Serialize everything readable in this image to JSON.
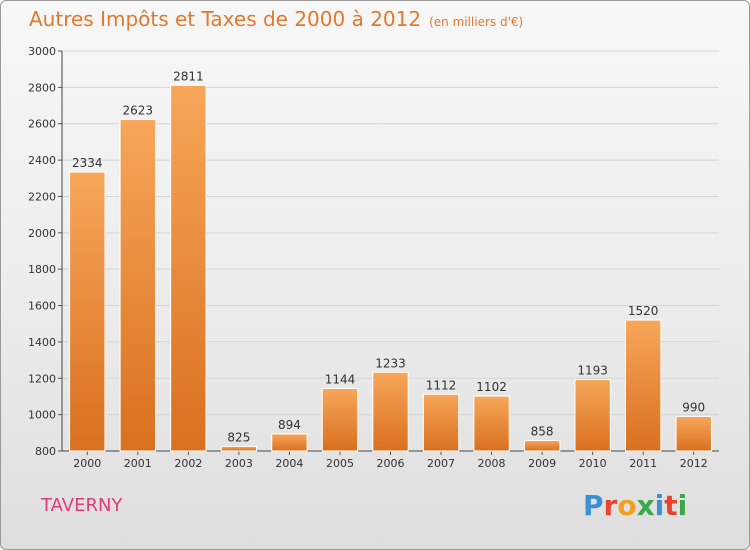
{
  "chart_data": {
    "type": "bar",
    "title": "Autres Impôts et Taxes de 2000 à 2012",
    "subtitle": "(en milliers d'€)",
    "categories": [
      "2000",
      "2001",
      "2002",
      "2003",
      "2004",
      "2005",
      "2006",
      "2007",
      "2008",
      "2009",
      "2010",
      "2011",
      "2012"
    ],
    "values": [
      2334,
      2623,
      2811,
      825,
      894,
      1144,
      1233,
      1112,
      1102,
      858,
      1193,
      1520,
      990
    ],
    "ylim": [
      800,
      3000
    ],
    "yticks": [
      800,
      1000,
      1200,
      1400,
      1600,
      1800,
      2000,
      2200,
      2400,
      2600,
      2800,
      3000
    ],
    "xlabel": "",
    "ylabel": "",
    "grid": true,
    "bar_color": "#f08a2c"
  },
  "location": "TAVERNY",
  "logo": {
    "text": "Proxiti",
    "letter_colors": [
      "#3a8fd6",
      "#e8432f",
      "#f0a020",
      "#3aa84a",
      "#3a8fd6",
      "#e8432f",
      "#3aa84a"
    ]
  }
}
